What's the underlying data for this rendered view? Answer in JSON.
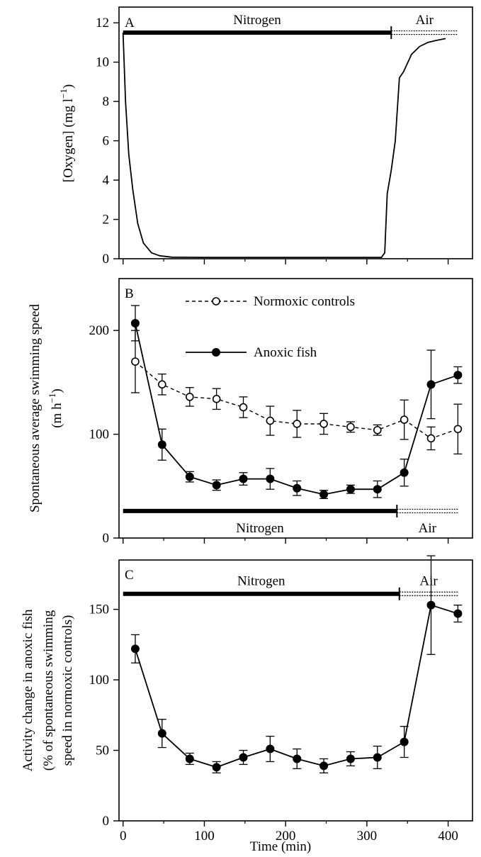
{
  "chart_data": [
    {
      "type": "line",
      "panel_letter": "A",
      "ylabel": "[Oxygen] (mg l",
      "ylabel_sup": "−1",
      "ylabel_end": ")",
      "ylim": [
        0,
        12.8
      ],
      "yticks": [
        0,
        2,
        4,
        6,
        8,
        10,
        12
      ],
      "xlim": [
        -5,
        430
      ],
      "series": [
        {
          "x": [
            0,
            3,
            7,
            12,
            18,
            25,
            35,
            45,
            60,
            100,
            150,
            200,
            250,
            300,
            318,
            322,
            325,
            330,
            335,
            340,
            345,
            355,
            365,
            375,
            385,
            397
          ],
          "y": [
            11.5,
            8.0,
            5.3,
            3.5,
            1.8,
            0.8,
            0.3,
            0.15,
            0.08,
            0.07,
            0.07,
            0.07,
            0.07,
            0.07,
            0.07,
            0.3,
            3.3,
            4.5,
            6.0,
            9.2,
            9.5,
            10.4,
            10.8,
            11.0,
            11.1,
            11.2
          ]
        }
      ],
      "bars": [
        {
          "label": "Nitrogen",
          "from": 0,
          "to": 330,
          "style": "solid"
        },
        {
          "label": "Air",
          "from": 330,
          "to": 412,
          "style": "dotted"
        }
      ],
      "bar_y": 11.5,
      "bar_labels_position": "above"
    },
    {
      "type": "line",
      "panel_letter": "B",
      "ylabel": "Spontaneous average swimming speed",
      "ylabel2": "(m h",
      "ylabel2_sup": "−1",
      "ylabel2_end": ")",
      "ylim": [
        0,
        250
      ],
      "yticks": [
        0,
        100,
        200
      ],
      "xlim": [
        -5,
        430
      ],
      "series": [
        {
          "name": "Normoxic controls",
          "style": "dashed-open",
          "x": [
            15,
            48,
            82,
            115,
            148,
            181,
            214,
            247,
            280,
            313,
            346,
            379,
            412
          ],
          "y": [
            170,
            148,
            136,
            134,
            126,
            113,
            110,
            110,
            107,
            104,
            114,
            96,
            105
          ],
          "err": [
            30,
            10,
            9,
            10,
            10,
            14,
            13,
            10,
            5,
            5,
            19,
            11,
            24
          ]
        },
        {
          "name": "Anoxic fish",
          "style": "solid-filled",
          "x": [
            15,
            48,
            82,
            115,
            148,
            181,
            214,
            247,
            280,
            313,
            346,
            379,
            412
          ],
          "y": [
            207,
            90,
            59,
            51,
            57,
            57,
            48,
            42,
            47,
            47,
            63,
            148,
            157
          ],
          "err": [
            17,
            15,
            5,
            5,
            6,
            10,
            7,
            4,
            4,
            8,
            13,
            33,
            8
          ]
        }
      ],
      "bars": [
        {
          "label": "Nitrogen",
          "from": 0,
          "to": 337,
          "style": "solid"
        },
        {
          "label": "Air",
          "from": 337,
          "to": 412,
          "style": "dotted"
        }
      ],
      "bar_y": 26,
      "bar_labels_position": "below"
    },
    {
      "type": "line",
      "panel_letter": "C",
      "ylabel": "Activity change in anoxic fish",
      "ylabel2": "(% of spontaneous swimming",
      "ylabel3": "speed in normoxic controls)",
      "xlabel": "Time (min)",
      "ylim": [
        0,
        185
      ],
      "yticks": [
        0,
        50,
        100,
        150
      ],
      "xlim": [
        -5,
        430
      ],
      "xticks": [
        0,
        100,
        200,
        300,
        400
      ],
      "series": [
        {
          "style": "solid-filled",
          "x": [
            15,
            48,
            82,
            115,
            148,
            181,
            214,
            247,
            280,
            313,
            346,
            379,
            412
          ],
          "y": [
            122,
            62,
            44,
            38,
            45,
            51,
            44,
            39,
            44,
            45,
            56,
            153,
            147
          ],
          "err": [
            10,
            10,
            4,
            4,
            5,
            9,
            7,
            5,
            5,
            8,
            11,
            35,
            6
          ]
        }
      ],
      "bars": [
        {
          "label": "Nitrogen",
          "from": 0,
          "to": 340,
          "style": "solid"
        },
        {
          "label": "Air",
          "from": 340,
          "to": 412,
          "style": "dotted"
        }
      ],
      "bar_y": 161,
      "bar_labels_position": "above"
    }
  ]
}
